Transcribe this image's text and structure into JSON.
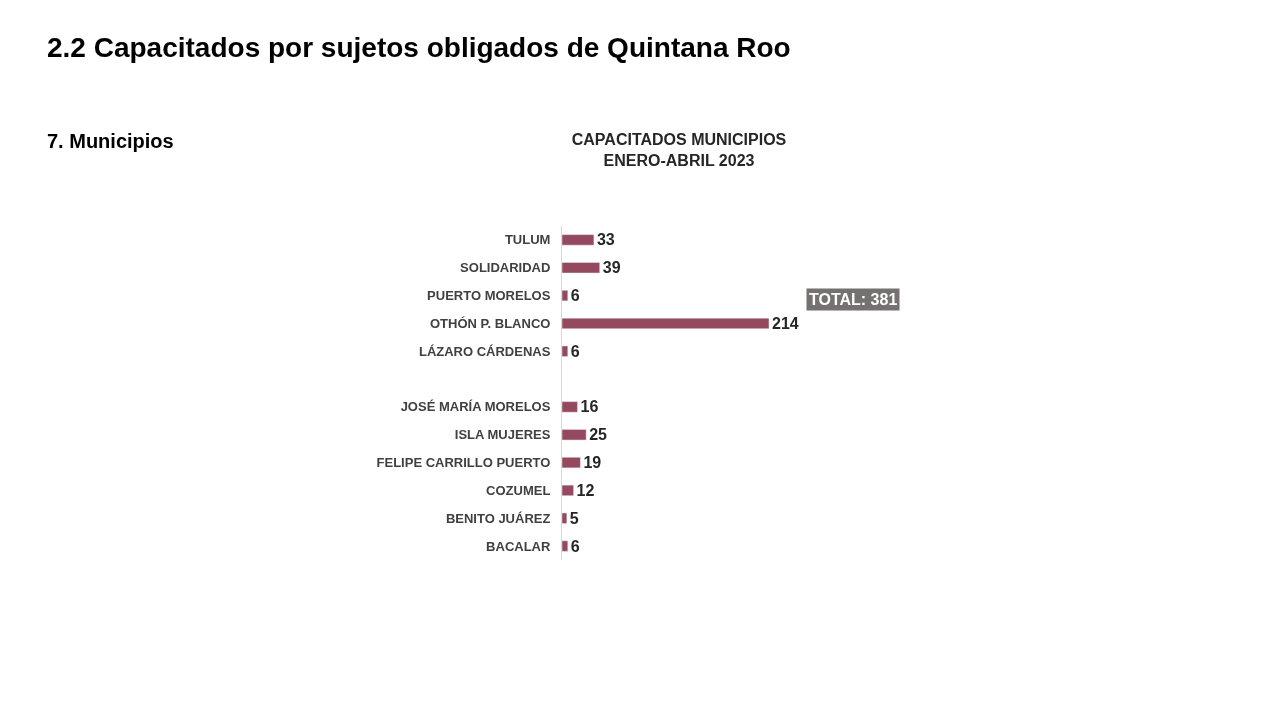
{
  "chart_data": {
    "type": "bar",
    "orientation": "horizontal",
    "title": "CAPACITADOS MUNICIPIOS\nENERO-ABRIL 2023",
    "categories": [
      "TULUM",
      "SOLIDARIDAD",
      "PUERTO MORELOS",
      "OTHÓN P. BLANCO",
      "LÁZARO CÁRDENAS",
      null,
      "JOSÉ MARÍA MORELOS",
      "ISLA MUJERES",
      "FELIPE CARRILLO PUERTO",
      "COZUMEL",
      "BENITO JUÁREZ",
      "BACALAR"
    ],
    "values": [
      33,
      39,
      6,
      214,
      6,
      null,
      16,
      25,
      19,
      12,
      5,
      6
    ],
    "color": "#94495e",
    "data_labels": true,
    "annotations": [
      "2.2 Capacitados por sujetos obligados de Quintana Roo",
      "7. Municipios",
      "TOTAL: 381"
    ]
  }
}
